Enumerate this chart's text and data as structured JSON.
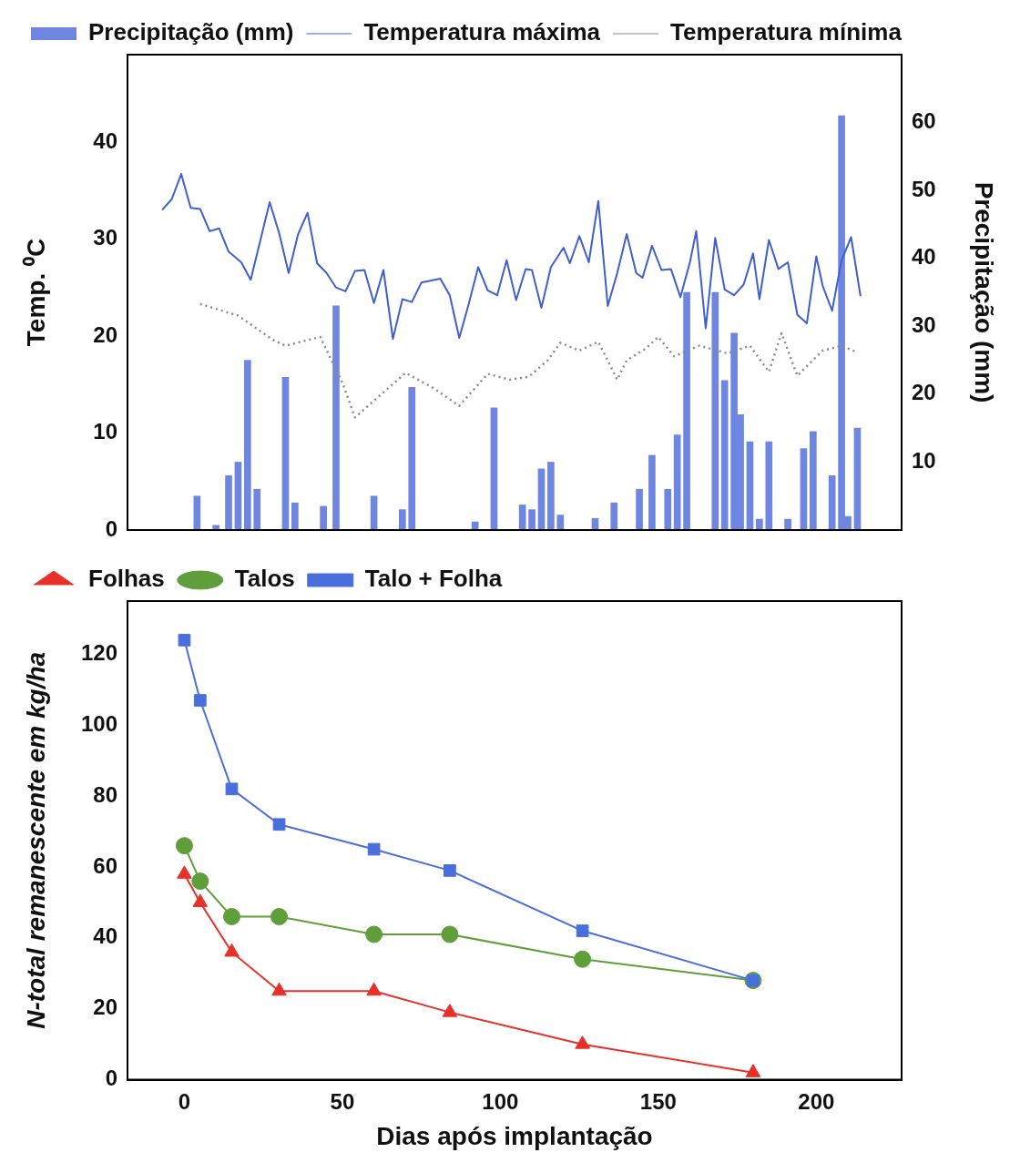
{
  "chart_data": [
    {
      "type": "bar",
      "ylabel": "Temp. ⁰C",
      "y2label": "Precipitação (mm)",
      "legend": "top left",
      "tick_labels": "y",
      "xlim": [
        -18,
        227
      ],
      "ylim": [
        0,
        49
      ],
      "yticks": [
        0,
        10,
        20,
        30,
        40
      ],
      "y2lim": [
        0,
        70
      ],
      "y2ticks": [
        10,
        20,
        30,
        40,
        50,
        60
      ],
      "series": [
        {
          "type": "bar",
          "name": "Precipitação (mm)",
          "color": "#6f86e0",
          "axis": "y2",
          "x": [
            4,
            10,
            14,
            17,
            20,
            23,
            32,
            35,
            44,
            48,
            60,
            69,
            72,
            92,
            98,
            107,
            110,
            113,
            116,
            119,
            130,
            136,
            144,
            148,
            153,
            156,
            159,
            168,
            171,
            174,
            176,
            179,
            182,
            185,
            191,
            196,
            199,
            205,
            208,
            210,
            213
          ],
          "values": [
            5,
            0.7,
            8,
            10,
            25,
            6,
            22.5,
            4,
            3.5,
            33,
            5,
            3,
            21,
            1.2,
            18,
            3.7,
            3,
            9,
            10,
            2.2,
            1.7,
            4,
            6,
            11,
            6,
            14,
            35,
            35,
            22,
            29,
            17,
            13,
            1.6,
            13,
            1.6,
            12,
            14.5,
            8,
            61,
            2,
            15
          ]
        },
        {
          "type": "line",
          "name": "Temperatura máxima",
          "color": "#3f5fd0",
          "marker": "none",
          "x": [
            -7,
            -4,
            -1,
            2,
            5,
            8,
            11,
            14,
            18,
            21,
            27,
            30,
            33,
            36,
            39,
            42,
            45,
            48,
            51,
            54,
            57,
            60,
            63,
            66,
            69,
            72,
            75,
            81,
            84,
            87,
            90,
            93,
            96,
            99,
            102,
            105,
            108,
            110,
            113,
            116,
            120,
            122,
            125,
            128,
            131,
            134,
            137,
            140,
            143,
            145,
            148,
            151,
            154,
            157,
            160,
            162,
            165,
            168,
            171,
            174,
            177,
            180,
            182,
            185,
            188,
            191,
            194,
            197,
            200,
            202,
            205,
            208,
            211,
            214
          ],
          "values": [
            33,
            34.1,
            36.7,
            33.2,
            33.1,
            30.8,
            31.1,
            28.7,
            27.6,
            25.8,
            33.8,
            30.6,
            26.5,
            30.5,
            32.7,
            27.5,
            26.5,
            25,
            24.6,
            26.7,
            26.8,
            23.4,
            26.8,
            19.7,
            23.8,
            23.5,
            25.5,
            25.9,
            24.2,
            19.8,
            23.3,
            27.1,
            24.7,
            24.2,
            27.8,
            23.7,
            26.9,
            26.8,
            22.9,
            27.1,
            29.1,
            27.5,
            30.3,
            27.6,
            33.9,
            23.1,
            26.5,
            30.5,
            26.5,
            26,
            29.3,
            26.8,
            26.9,
            24,
            27.6,
            30.8,
            20.8,
            30.1,
            24.8,
            24.2,
            25.3,
            28.5,
            23.8,
            29.9,
            26.9,
            27.6,
            22.2,
            21.3,
            28.2,
            25.2,
            22.6,
            27.8,
            30.2,
            24.1
          ]
        },
        {
          "type": "line",
          "name": "Temperatura mínima",
          "color": "#8a8a8a",
          "marker": "none",
          "line_style": "dotted",
          "x": [
            5,
            17,
            28,
            32,
            43,
            50,
            54,
            70,
            79,
            87,
            96,
            103,
            109,
            115,
            119,
            125,
            131,
            137,
            140,
            146,
            150,
            155,
            163,
            172,
            179,
            185,
            189,
            194,
            202,
            208,
            213
          ],
          "values": [
            23.3,
            22.1,
            19.6,
            19,
            19.9,
            15.2,
            11.6,
            16.2,
            14.6,
            12.8,
            16.1,
            15.5,
            15.8,
            17.5,
            19.3,
            18.5,
            19.4,
            15.5,
            17.5,
            18.7,
            19.9,
            17.9,
            19,
            18.2,
            19,
            16.3,
            20.3,
            15.9,
            18.5,
            19,
            18.3
          ]
        }
      ]
    },
    {
      "type": "line",
      "xlabel": "Dias após implantação",
      "ylabel": "N-total remanescente em kg/ha",
      "legend": "top left",
      "xlim": [
        -18,
        227
      ],
      "xticks": [
        0,
        50,
        100,
        150,
        200
      ],
      "ylim": [
        0,
        135
      ],
      "yticks": [
        0,
        20,
        40,
        60,
        80,
        100,
        120
      ],
      "x": [
        0,
        5,
        15,
        30,
        60,
        84,
        126,
        180
      ],
      "series": [
        {
          "name": "Folhas",
          "color": "#e8302a",
          "marker": "triangle",
          "values": [
            58,
            50,
            36,
            25,
            25,
            19,
            10,
            2
          ]
        },
        {
          "name": "Talos",
          "color": "#5f9e3a",
          "marker": "circle",
          "values": [
            66,
            56,
            46,
            46,
            41,
            41,
            34,
            28
          ]
        },
        {
          "name": "Talo + Folha",
          "color": "#4a6fdc",
          "marker": "square",
          "values": [
            124,
            107,
            82,
            72,
            65,
            59,
            42,
            28
          ]
        }
      ]
    }
  ]
}
